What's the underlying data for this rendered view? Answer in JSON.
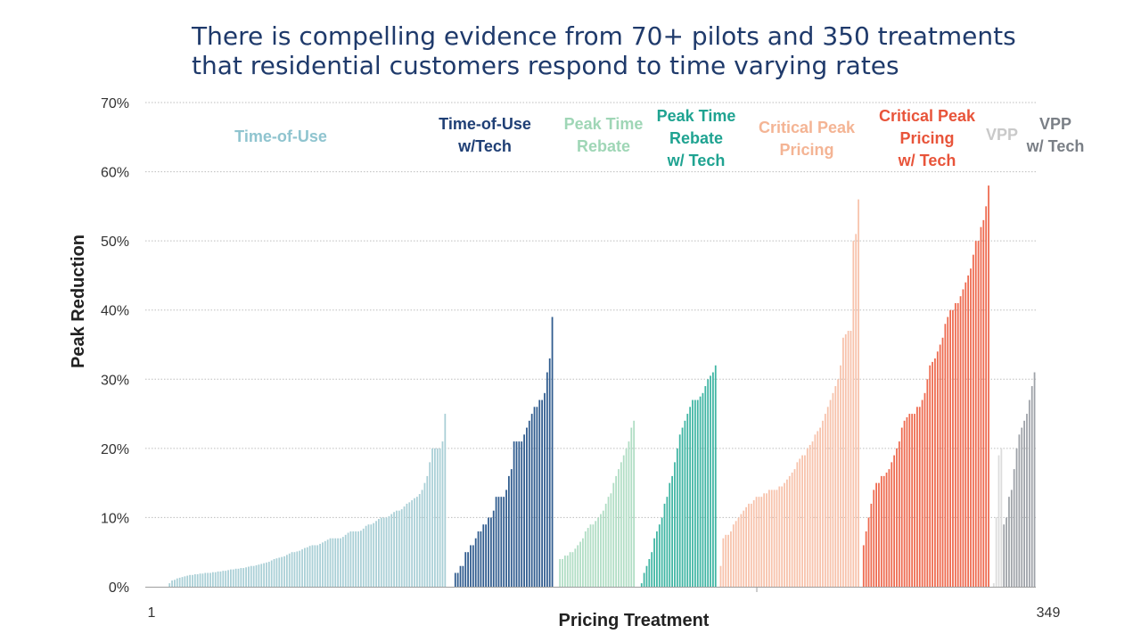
{
  "slide": {
    "title_line1": "There is compelling evidence from 70+ pilots and 350 treatments",
    "title_line2": "that residential customers respond to time varying rates"
  },
  "chart_data": {
    "type": "bar",
    "xlabel": "Pricing Treatment",
    "ylabel": "Peak Reduction",
    "ylim": [
      0,
      70
    ],
    "yticks": [
      "0%",
      "10%",
      "20%",
      "30%",
      "40%",
      "50%",
      "60%",
      "70%"
    ],
    "x_start_label": "1",
    "x_end_label": "349",
    "grid": true,
    "series": [
      {
        "label_lines": [
          "Time-of-Use"
        ],
        "color": "#a9cfd6",
        "label_color": "#8fc4cf",
        "range": [
          1,
          120
        ],
        "values": [
          0,
          0,
          0,
          0,
          0,
          0,
          0,
          0,
          0,
          0.5,
          0.9,
          1,
          1.2,
          1.3,
          1.4,
          1.5,
          1.6,
          1.7,
          1.7,
          1.8,
          1.8,
          1.9,
          1.9,
          2,
          2,
          2,
          2.1,
          2.1,
          2.2,
          2.2,
          2.3,
          2.3,
          2.4,
          2.5,
          2.5,
          2.6,
          2.6,
          2.7,
          2.7,
          2.8,
          2.9,
          3,
          3,
          3.1,
          3.2,
          3.3,
          3.4,
          3.5,
          3.6,
          3.8,
          4,
          4.1,
          4.2,
          4.3,
          4.4,
          4.6,
          4.8,
          5,
          5,
          5.1,
          5.2,
          5.4,
          5.6,
          5.7,
          5.9,
          6,
          6,
          6,
          6.2,
          6.4,
          6.6,
          6.8,
          7,
          7,
          7,
          7,
          7,
          7.2,
          7.5,
          7.8,
          8,
          8,
          8,
          8,
          8.1,
          8.4,
          8.8,
          9,
          9,
          9.2,
          9.5,
          9.8,
          10,
          10,
          10,
          10.2,
          10.5,
          10.8,
          11,
          11,
          11.2,
          11.6,
          12,
          12.2,
          12.5,
          12.8,
          13,
          13.4,
          14,
          15,
          16,
          18,
          20,
          20,
          20,
          20,
          21,
          25,
          0,
          0
        ]
      },
      {
        "label_lines": [
          "Time-of-Use",
          "w/Tech"
        ],
        "color": "#2f5b8e",
        "label_color": "#1f3f75",
        "range": [
          122,
          160
        ],
        "values": [
          2,
          2,
          3,
          3,
          5,
          5,
          6,
          6,
          7,
          8,
          8,
          9,
          9,
          10,
          10,
          11,
          13,
          13,
          13,
          13,
          14,
          16,
          17,
          21,
          21,
          21,
          21,
          22,
          23,
          24,
          25,
          26,
          26,
          27,
          27,
          28,
          31,
          33,
          39
        ]
      },
      {
        "label_lines": [
          "Peak Time",
          "Rebate"
        ],
        "color": "#b0ddc4",
        "label_color": "#9fd6b6",
        "range": [
          163,
          192
        ],
        "values": [
          4,
          4,
          4.5,
          4.5,
          5,
          5,
          5.5,
          6,
          6.5,
          7,
          8,
          8.5,
          9,
          9,
          9.5,
          10,
          10.5,
          11,
          12,
          13,
          13.5,
          15,
          16,
          17,
          18,
          19,
          20,
          21,
          23,
          24
        ]
      },
      {
        "label_lines": [
          "Peak Time",
          "Rebate",
          "w/ Tech"
        ],
        "color": "#3fb5a3",
        "label_color": "#1fa391",
        "range": [
          194,
          224
        ],
        "values": [
          0,
          0.5,
          2,
          3,
          4,
          5,
          7,
          8,
          9,
          10,
          12,
          13,
          15,
          16,
          18,
          20,
          22,
          23,
          24,
          25,
          26,
          27,
          27,
          27,
          27.5,
          28,
          29,
          30,
          30.5,
          31,
          32
        ]
      },
      {
        "label_lines": [
          "Critical Peak",
          "Pricing"
        ],
        "color": "#f7c2ab",
        "label_color": "#f4b494",
        "range": [
          226,
          280
        ],
        "values": [
          3,
          7,
          7.5,
          7.5,
          8,
          9,
          9.5,
          10,
          10.5,
          11,
          11.5,
          12,
          12,
          12.5,
          13,
          13,
          13,
          13.5,
          13.5,
          14,
          14,
          14,
          14,
          14.5,
          14.5,
          15,
          15.5,
          16,
          16.5,
          17,
          18,
          18.5,
          19,
          19,
          20,
          20.5,
          21,
          22,
          22.5,
          23,
          24,
          25,
          26,
          27,
          28,
          29,
          30,
          32,
          36,
          36.5,
          37,
          37,
          50,
          51,
          56
        ]
      },
      {
        "label_lines": [
          "Critical Peak",
          "Pricing",
          "w/ Tech"
        ],
        "color": "#ee6a4f",
        "label_color": "#e8543a",
        "range": [
          282,
          331
        ],
        "values": [
          6,
          8,
          10,
          12,
          14,
          15,
          15,
          16,
          16,
          16.5,
          17,
          18,
          19,
          20,
          21,
          23,
          24,
          24.5,
          25,
          25,
          25,
          26,
          26,
          27,
          28,
          30,
          32,
          32.5,
          33,
          34,
          35,
          36,
          38,
          39,
          40,
          40,
          41,
          41,
          42,
          43,
          44,
          45,
          46,
          48,
          50,
          50,
          52,
          53,
          55,
          58
        ]
      },
      {
        "label_lines": [
          "VPP"
        ],
        "color": "#dcdcdc",
        "label_color": "#c9c9c9",
        "range": [
          333,
          336
        ],
        "values": [
          0.5,
          10,
          19,
          20
        ]
      },
      {
        "label_lines": [
          "VPP",
          "w/ Tech"
        ],
        "color": "#9ea2a8",
        "label_color": "#7a7f86",
        "range": [
          337,
          349
        ],
        "values": [
          9,
          10,
          13,
          14,
          17,
          20,
          22,
          23,
          24,
          25,
          27,
          29,
          31
        ]
      }
    ]
  }
}
